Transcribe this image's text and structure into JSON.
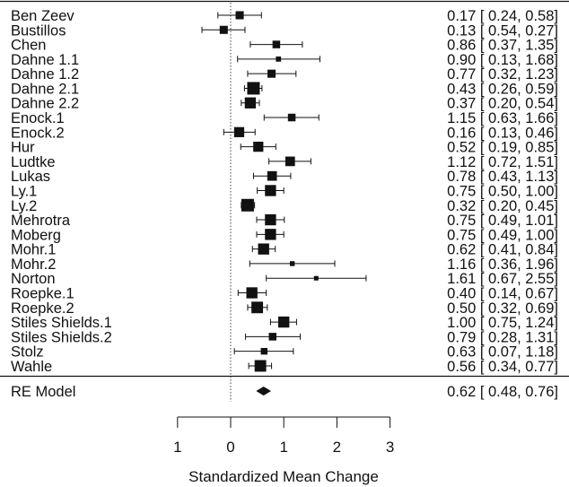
{
  "chart_data": {
    "type": "forest",
    "xlabel": "Standardized Mean Change",
    "xlim": [
      -1,
      3
    ],
    "xticks": [
      -1,
      0,
      1,
      2,
      3
    ],
    "xtick_labels": [
      "1",
      "0",
      "1",
      "2",
      "3"
    ],
    "reference_line": 0,
    "studies": [
      {
        "label": "Ben  Zeev",
        "est": 0.17,
        "lo": -0.24,
        "hi": 0.58,
        "ci_text": "0.17 [ 0.24, 0.58]",
        "weight": 0.55
      },
      {
        "label": "Bustillos",
        "est": -0.13,
        "lo": -0.54,
        "hi": 0.27,
        "ci_text": "0.13 [ 0.54, 0.27]",
        "weight": 0.55
      },
      {
        "label": "Chen",
        "est": 0.86,
        "lo": 0.37,
        "hi": 1.35,
        "ci_text": "0.86 [ 0.37, 1.35]",
        "weight": 0.5
      },
      {
        "label": "Dahne 1.1",
        "est": 0.9,
        "lo": 0.13,
        "hi": 1.68,
        "ci_text": "0.90 [ 0.13, 1.68]",
        "weight": 0.25
      },
      {
        "label": "Dahne 1.2",
        "est": 0.77,
        "lo": 0.32,
        "hi": 1.23,
        "ci_text": "0.77 [ 0.32, 1.23]",
        "weight": 0.55
      },
      {
        "label": "Dahne 2.1",
        "est": 0.43,
        "lo": 0.26,
        "hi": 0.59,
        "ci_text": "0.43 [ 0.26, 0.59]",
        "weight": 1.0
      },
      {
        "label": "Dahne 2.2",
        "est": 0.37,
        "lo": 0.2,
        "hi": 0.54,
        "ci_text": "0.37 [ 0.20, 0.54]",
        "weight": 0.85
      },
      {
        "label": "Enock.1",
        "est": 1.15,
        "lo": 0.63,
        "hi": 1.66,
        "ci_text": "1.15 [ 0.63, 1.66]",
        "weight": 0.5
      },
      {
        "label": "Enock.2",
        "est": 0.16,
        "lo": -0.13,
        "hi": 0.46,
        "ci_text": "0.16 [ 0.13, 0.46]",
        "weight": 0.75
      },
      {
        "label": "Hur",
        "est": 0.52,
        "lo": 0.19,
        "hi": 0.85,
        "ci_text": "0.52 [ 0.19, 0.85]",
        "weight": 0.75
      },
      {
        "label": "Ludtke",
        "est": 1.12,
        "lo": 0.72,
        "hi": 1.51,
        "ci_text": "1.12 [ 0.72, 1.51]",
        "weight": 0.7
      },
      {
        "label": "Lukas",
        "est": 0.78,
        "lo": 0.43,
        "hi": 1.13,
        "ci_text": "0.78 [ 0.43, 1.13]",
        "weight": 0.7
      },
      {
        "label": "Ly.1",
        "est": 0.75,
        "lo": 0.5,
        "hi": 1.0,
        "ci_text": "0.75 [ 0.50, 1.00]",
        "weight": 0.85
      },
      {
        "label": "Ly.2",
        "est": 0.32,
        "lo": 0.2,
        "hi": 0.45,
        "ci_text": "0.32 [ 0.20, 0.45]",
        "weight": 1.0
      },
      {
        "label": "Mehrotra",
        "est": 0.75,
        "lo": 0.49,
        "hi": 1.01,
        "ci_text": "0.75 [ 0.49, 1.01]",
        "weight": 0.85
      },
      {
        "label": "Moberg",
        "est": 0.75,
        "lo": 0.49,
        "hi": 1.0,
        "ci_text": "0.75 [ 0.49, 1.00]",
        "weight": 0.85
      },
      {
        "label": "Mohr.1",
        "est": 0.62,
        "lo": 0.41,
        "hi": 0.84,
        "ci_text": "0.62 [ 0.41, 0.84]",
        "weight": 0.85
      },
      {
        "label": "Mohr.2",
        "est": 1.16,
        "lo": 0.36,
        "hi": 1.96,
        "ci_text": "1.16 [ 0.36, 1.96]",
        "weight": 0.22
      },
      {
        "label": "Norton",
        "est": 1.61,
        "lo": 0.67,
        "hi": 2.55,
        "ci_text": "1.61 [ 0.67, 2.55]",
        "weight": 0.18
      },
      {
        "label": "Roepke.1",
        "est": 0.4,
        "lo": 0.14,
        "hi": 0.67,
        "ci_text": "0.40 [ 0.14, 0.67]",
        "weight": 0.85
      },
      {
        "label": "Roepke.2",
        "est": 0.5,
        "lo": 0.32,
        "hi": 0.69,
        "ci_text": "0.50 [ 0.32, 0.69]",
        "weight": 0.9
      },
      {
        "label": "Stiles  Shields.1",
        "est": 1.0,
        "lo": 0.75,
        "hi": 1.24,
        "ci_text": "1.00 [ 0.75, 1.24]",
        "weight": 0.85
      },
      {
        "label": "Stiles  Shields.2",
        "est": 0.79,
        "lo": 0.28,
        "hi": 1.31,
        "ci_text": "0.79 [ 0.28, 1.31]",
        "weight": 0.5
      },
      {
        "label": "Stolz",
        "est": 0.63,
        "lo": 0.07,
        "hi": 1.18,
        "ci_text": "0.63 [ 0.07, 1.18]",
        "weight": 0.4
      },
      {
        "label": "Wahle",
        "est": 0.56,
        "lo": 0.34,
        "hi": 0.77,
        "ci_text": "0.56 [ 0.34, 0.77]",
        "weight": 0.9
      }
    ],
    "summary": {
      "label": "RE Model",
      "est": 0.62,
      "lo": 0.48,
      "hi": 0.76,
      "ci_text": "0.62 [ 0.48, 0.76]"
    }
  }
}
